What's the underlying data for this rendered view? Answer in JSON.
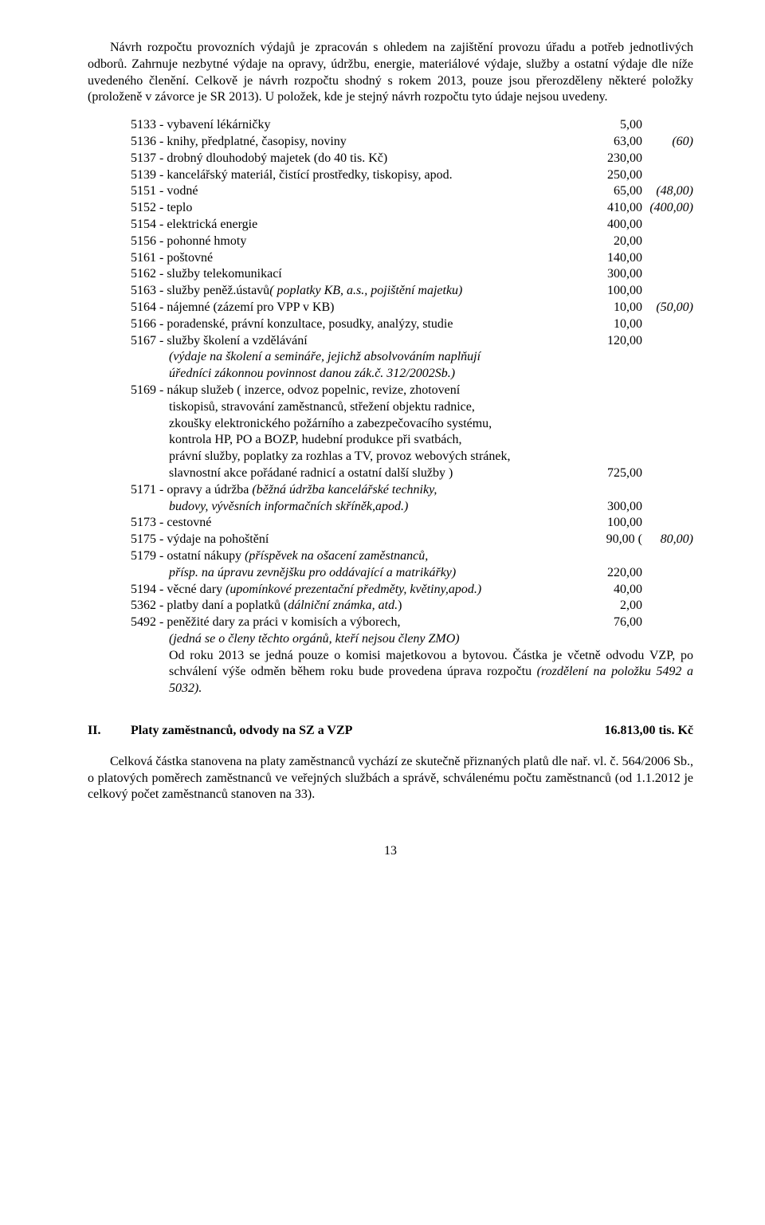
{
  "intro": {
    "p1": "Návrh rozpočtu provozních výdajů je zpracován s ohledem na zajištění provozu úřadu a potřeb jednotlivých odborů. Zahrnuje nezbytné výdaje na opravy, údržbu, energie, materiálové výdaje, služby a ostatní výdaje dle níže uvedeného členění. Celkově je návrh rozpočtu shodný s rokem 2013, pouze jsou přerozděleny některé položky (proloženě v závorce je SR 2013). U položek, kde je stejný návrh rozpočtu tyto údaje nejsou uvedeny."
  },
  "items": {
    "r5133": {
      "label": "5133 - vybavení lékárničky",
      "amount": "5,00",
      "note": ""
    },
    "r5136": {
      "label": "5136 - knihy, předplatné, časopisy, noviny",
      "amount": "63,00",
      "note": "(60)"
    },
    "r5137": {
      "label": "5137 - drobný dlouhodobý majetek (do 40 tis. Kč)",
      "amount": "230,00",
      "note": ""
    },
    "r5139": {
      "label": "5139 - kancelářský materiál, čistící prostředky, tiskopisy, apod.",
      "amount": "250,00",
      "note": ""
    },
    "r5151": {
      "label": "5151 - vodné",
      "amount": "65,00",
      "note": "(48,00)"
    },
    "r5152": {
      "label": "5152 - teplo",
      "amount": "410,00",
      "note": "(400,00)"
    },
    "r5154": {
      "label": "5154 - elektrická energie",
      "amount": "400,00",
      "note": ""
    },
    "r5156": {
      "label": "5156 - pohonné hmoty",
      "amount": "20,00",
      "note": ""
    },
    "r5161": {
      "label": "5161 - poštovné",
      "amount": "140,00",
      "note": ""
    },
    "r5162": {
      "label": "5162 - služby telekomunikací",
      "amount": "300,00",
      "note": ""
    },
    "r5163": {
      "label_a": "5163 - služby peněž.ústavů",
      "label_b": "( poplatky KB, a.s., pojištění majetku)",
      "amount": "100,00",
      "note": ""
    },
    "r5164": {
      "label": "5164 - nájemné (zázemí pro VPP v KB)",
      "amount": "10,00",
      "note": "(50,00)"
    },
    "r5166": {
      "label": "5166 - poradenské, právní  konzultace, posudky, analýzy, studie",
      "amount": "10,00",
      "note": ""
    },
    "r5167": {
      "label": "5167 - služby školení a vzdělávání",
      "amount": "120,00",
      "note": ""
    },
    "r5167sub1": "(výdaje na školení a semináře, jejichž absolvováním naplňují",
    "r5167sub2": "úředníci zákonnou povinnost danou zák.č. 312/2002Sb.)",
    "r5169a": "5169 - nákup služeb ( inzerce, odvoz popelnic, revize, zhotovení",
    "r5169b": "tiskopisů, stravování zaměstnanců, střežení objektu radnice,",
    "r5169c": "zkoušky elektronického požárního a zabezpečovacího systému,",
    "r5169d": "kontrola HP, PO a BOZP, hudební produkce při svatbách,",
    "r5169e": "právní služby, poplatky za rozhlas a TV, provoz webových stránek,",
    "r5169f": {
      "label": "slavnostní akce pořádané radnicí a ostatní další  služby )",
      "amount": "725,00"
    },
    "r5171a": {
      "a": "5171 - opravy a údržba ",
      "b": "(běžná údržba kancelářské techniky,"
    },
    "r5171b": {
      "label": "budovy, vývěsních informačních skříněk,apod.)",
      "amount": "300,00"
    },
    "r5173": {
      "label": "5173 - cestovné",
      "amount": "100,00",
      "note": ""
    },
    "r5175": {
      "label": "5175 - výdaje na pohoštění",
      "amount": "90,00 (",
      "note": "80,00)"
    },
    "r5179a": {
      "a": "5179 - ostatní nákupy ",
      "b": "(příspěvek na ošacení zaměstnanců,"
    },
    "r5179b": {
      "label": "přísp. na úpravu zevnějšku pro oddávající a matrikářky)",
      "amount": "220,00"
    },
    "r5194": {
      "a": "5194 - věcné dary ",
      "b": "(upomínkové prezentační předměty, květiny,apod.)",
      "amount": "40,00"
    },
    "r5362": {
      "a": "5362 - platby daní a poplatků (",
      "b": "dálniční známka,  atd.",
      "c": ")",
      "amount": "2,00"
    },
    "r5492": {
      "label": "5492 - peněžité dary  za práci v komisích a výborech,",
      "amount": "76,00"
    },
    "r5492sub1": "(jedná se o členy těchto orgánů, kteří nejsou členy ZMO)",
    "r5492sub2a": "Od roku 2013 se jedná pouze o komisi majetkovou a bytovou. Částka je včetně odvodu VZP, po schválení výše odměn během roku bude provedena úprava rozpočtu ",
    "r5492sub2b": "(rozdělení na položku 5492 a 5032)."
  },
  "sectionII": {
    "roman": "II.",
    "title": "Platy zaměstnanců, odvody na SZ a VZP",
    "amount": "16.813,00 tis.  Kč"
  },
  "outro": {
    "p": "Celková částka stanovena na platy zaměstnanců  vychází  ze skutečně přiznaných platů dle nař. vl. č. 564/2006 Sb., o platových poměrech zaměstnanců ve veřejných službách a správě, schválenému počtu zaměstnanců (od  1.1.2012 je celkový počet zaměstnanců stanoven na 33)."
  },
  "page_number": "13"
}
